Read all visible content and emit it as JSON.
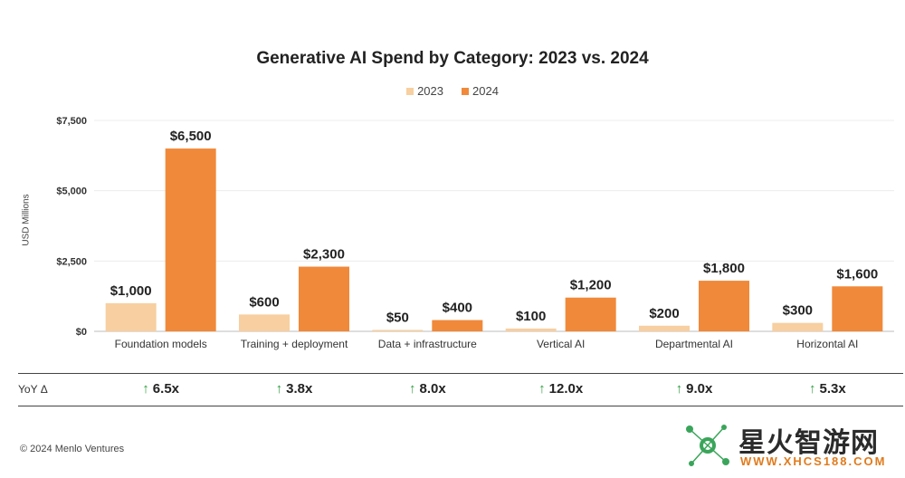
{
  "chart_data": {
    "type": "bar",
    "title": "Generative AI Spend by Category: 2023 vs. 2024",
    "ylabel": "USD Millions",
    "xlabel": "",
    "ylim": [
      0,
      7500
    ],
    "yticks": [
      0,
      2500,
      5000,
      7500
    ],
    "ytick_labels": [
      "$0",
      "$2,500",
      "$5,000",
      "$7,500"
    ],
    "grid": true,
    "legend_position": "top-center",
    "categories": [
      "Foundation models",
      "Training + deployment",
      "Data + infrastructure",
      "Vertical AI",
      "Departmental AI",
      "Horizontal AI"
    ],
    "series": [
      {
        "name": "2023",
        "color": "#f7cfa0",
        "values": [
          1000,
          600,
          50,
          100,
          200,
          300
        ],
        "labels": [
          "$1,000",
          "$600",
          "$50",
          "$100",
          "$200",
          "$300"
        ]
      },
      {
        "name": "2024",
        "color": "#f0893a",
        "values": [
          6500,
          2300,
          400,
          1200,
          1800,
          1600
        ],
        "labels": [
          "$6,500",
          "$2,300",
          "$400",
          "$1,200",
          "$1,800",
          "$1,600"
        ]
      }
    ]
  },
  "yoy": {
    "label": "YoY Δ",
    "arrow": "↑",
    "arrow_color": "#2e9e3e",
    "values": [
      "6.5x",
      "3.8x",
      "8.0x",
      "12.0x",
      "9.0x",
      "5.3x"
    ]
  },
  "footer": "© 2024 Menlo Ventures",
  "watermark": {
    "text": "星火智游网",
    "url": "WWW.XHCS188.COM"
  }
}
